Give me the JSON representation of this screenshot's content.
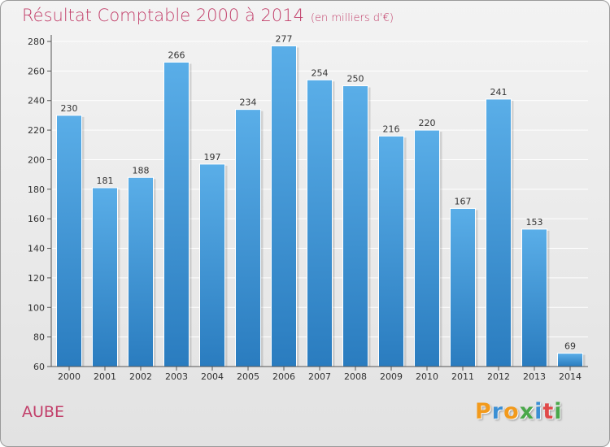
{
  "colors": {
    "title": "#c23f6a",
    "bar_top": "#5aaee8",
    "bar_bottom": "#2a7cbf",
    "grid": "#ffffff",
    "axis": "#555555"
  },
  "header": {
    "title": "Résultat Comptable 2000 à 2014",
    "subtitle": "(en milliers d'€)"
  },
  "footer": {
    "commune": "AUBE",
    "logo": "Proxiti",
    "logo_letters": [
      {
        "ch": "P",
        "color": "#f29a1c"
      },
      {
        "ch": "r",
        "color": "#3b8fd4"
      },
      {
        "ch": "o",
        "color": "#f29a1c"
      },
      {
        "ch": "x",
        "color": "#4aa84a"
      },
      {
        "ch": "i",
        "color": "#3b8fd4"
      },
      {
        "ch": "t",
        "color": "#e04a4a"
      },
      {
        "ch": "i",
        "color": "#4aa84a"
      }
    ]
  },
  "chart_data": {
    "type": "bar",
    "title": "Résultat Comptable 2000 à 2014",
    "subtitle": "(en milliers d'€)",
    "xlabel": "",
    "ylabel": "",
    "ylim": [
      60,
      280
    ],
    "yticks": [
      60,
      80,
      100,
      120,
      140,
      160,
      180,
      200,
      220,
      240,
      260,
      280
    ],
    "grid": true,
    "categories": [
      "2000",
      "2001",
      "2002",
      "2003",
      "2004",
      "2005",
      "2006",
      "2007",
      "2008",
      "2009",
      "2010",
      "2011",
      "2012",
      "2013",
      "2014"
    ],
    "values": [
      230,
      181,
      188,
      266,
      197,
      234,
      277,
      254,
      250,
      216,
      220,
      167,
      241,
      153,
      69
    ]
  }
}
